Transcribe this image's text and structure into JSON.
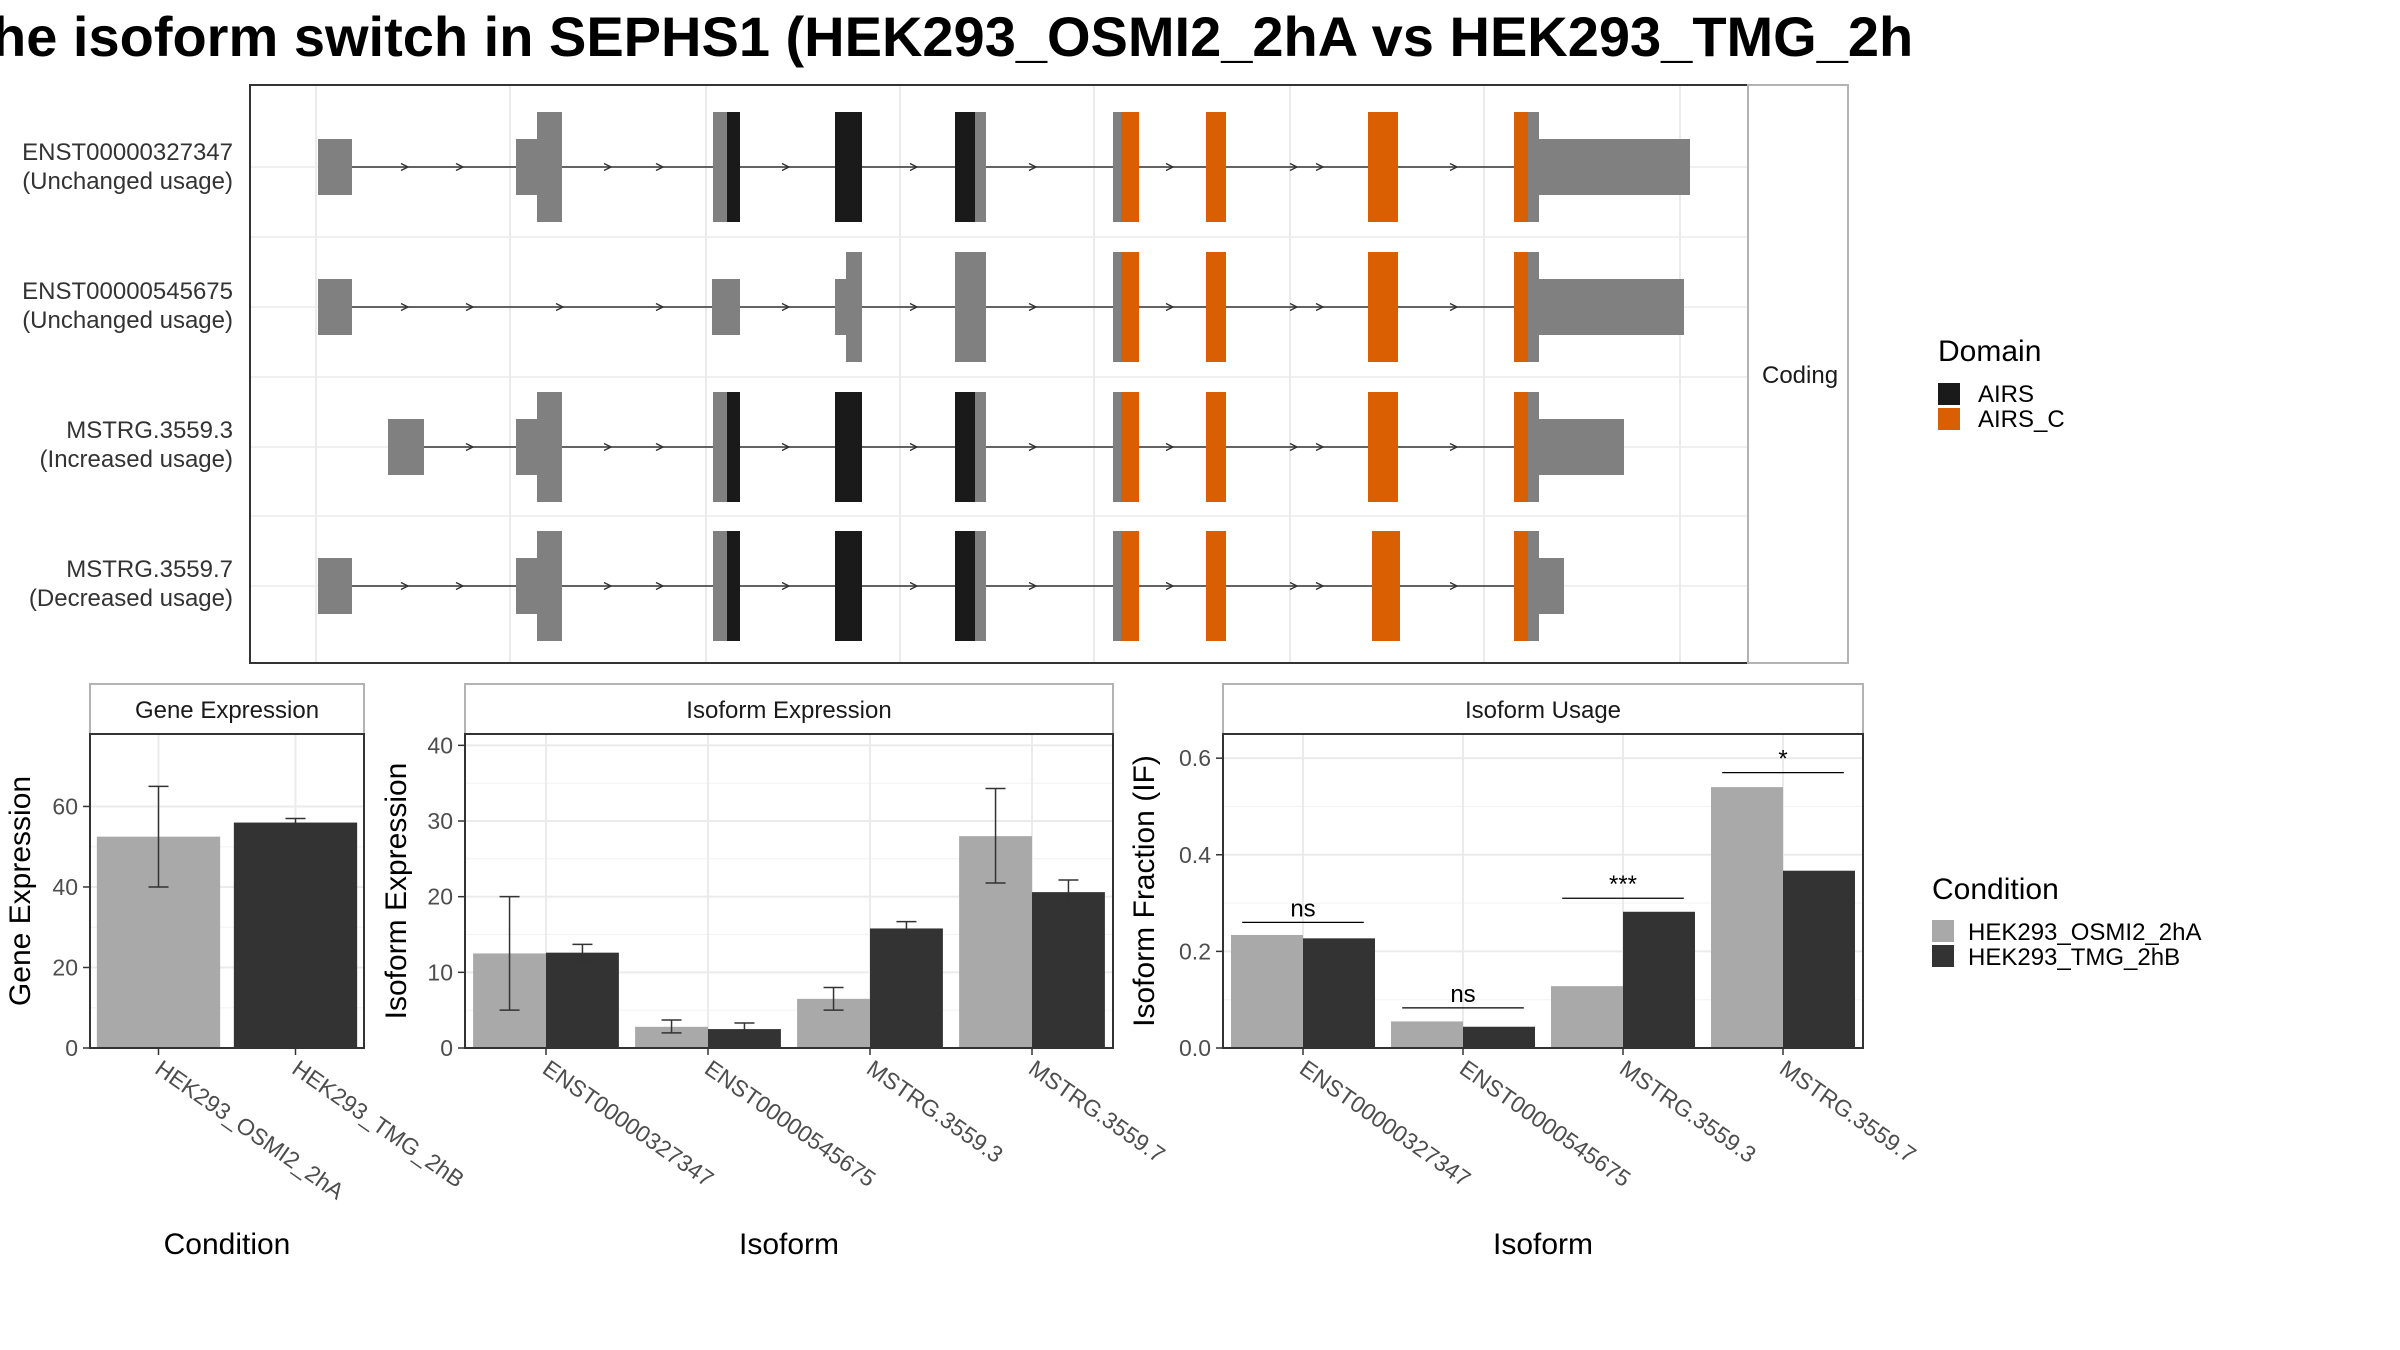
{
  "title": "he isoform switch in SEPHS1 (HEK293_OSMI2_2hA vs HEK293_TMG_2h",
  "colors": {
    "utr": "#808080",
    "domain_AIRS": "#1a1a1a",
    "domain_AIRS_C": "#d95f02",
    "cond_A": "#a9a9a9",
    "cond_B": "#333333",
    "grid": "#ebebeb",
    "panel_border": "#333333",
    "strip_border": "#b3b3b3"
  },
  "transcripts_panel": {
    "facet_label": "Coding",
    "transcripts": [
      {
        "id": "ENST00000327347",
        "usage": "(Unchanged usage)"
      },
      {
        "id": "ENST00000545675",
        "usage": "(Unchanged usage)"
      },
      {
        "id": "MSTRG.3559.3",
        "usage": "(Increased usage)"
      },
      {
        "id": "MSTRG.3559.7",
        "usage": "(Decreased usage)"
      }
    ]
  },
  "domain_legend": {
    "title": "Domain",
    "items": [
      {
        "label": "AIRS",
        "color": "#1a1a1a"
      },
      {
        "label": "AIRS_C",
        "color": "#d95f02"
      }
    ]
  },
  "condition_legend": {
    "title": "Condition",
    "items": [
      {
        "label": "HEK293_OSMI2_2hA",
        "color": "#a9a9a9"
      },
      {
        "label": "HEK293_TMG_2hB",
        "color": "#333333"
      }
    ]
  },
  "chart_data": [
    {
      "type": "bar",
      "strip": "Gene Expression",
      "categories": [
        "HEK293_OSMI2_2hA",
        "HEK293_TMG_2hB"
      ],
      "values": [
        52.5,
        56.0
      ],
      "error_low": [
        40.0,
        55.0
      ],
      "error_high": [
        65.0,
        57.0
      ],
      "xlabel": "Condition",
      "ylabel": "Gene Expression",
      "ylim": [
        0,
        78
      ],
      "yticks": [
        0,
        20,
        40,
        60
      ]
    },
    {
      "type": "bar",
      "strip": "Isoform Expression",
      "categories": [
        "ENST00000327347",
        "ENST00000545675",
        "MSTRG.3559.3",
        "MSTRG.3559.7"
      ],
      "series": [
        {
          "name": "HEK293_OSMI2_2hA",
          "values": [
            12.5,
            2.8,
            6.5,
            28.0
          ],
          "error_low": [
            5.0,
            2.0,
            5.0,
            21.8
          ],
          "error_high": [
            20.0,
            3.7,
            8.0,
            34.3
          ]
        },
        {
          "name": "HEK293_TMG_2hB",
          "values": [
            12.6,
            2.5,
            15.8,
            20.6
          ],
          "error_low": [
            11.5,
            1.8,
            15.0,
            19.0
          ],
          "error_high": [
            13.7,
            3.3,
            16.7,
            22.2
          ]
        }
      ],
      "xlabel": "Isoform",
      "ylabel": "Isoform Expression",
      "ylim": [
        0,
        41.5
      ],
      "yticks": [
        0,
        10,
        20,
        30,
        40
      ]
    },
    {
      "type": "bar",
      "strip": "Isoform Usage",
      "categories": [
        "ENST00000327347",
        "ENST00000545675",
        "MSTRG.3559.3",
        "MSTRG.3559.7"
      ],
      "series": [
        {
          "name": "HEK293_OSMI2_2hA",
          "values": [
            0.234,
            0.055,
            0.128,
            0.54
          ]
        },
        {
          "name": "HEK293_TMG_2hB",
          "values": [
            0.227,
            0.044,
            0.282,
            0.367
          ]
        }
      ],
      "significance": [
        "ns",
        "ns",
        "***",
        "*"
      ],
      "significance_y": [
        0.26,
        0.083,
        0.31,
        0.57
      ],
      "xlabel": "Isoform",
      "ylabel": "Isoform Fraction (IF)",
      "ylim": [
        0,
        0.65
      ],
      "yticks": [
        0,
        0.2,
        0.4,
        0.6
      ],
      "ytick_labels": [
        "0.0",
        "0.2",
        "0.4",
        "0.6"
      ]
    }
  ]
}
